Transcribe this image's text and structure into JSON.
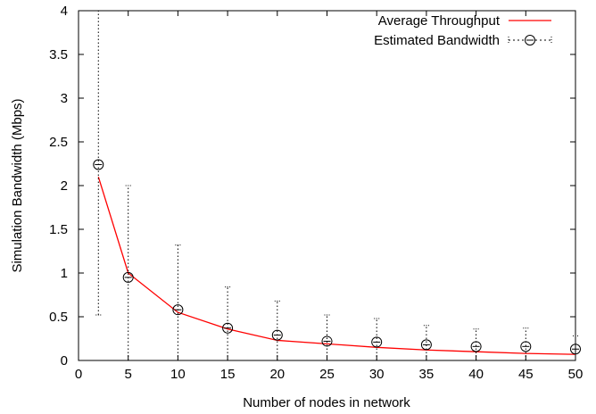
{
  "chart_data": {
    "type": "line",
    "xlabel": "Number of nodes in network",
    "ylabel": "Simulation Bandwidth (Mbps)",
    "xlim": [
      0,
      50
    ],
    "ylim": [
      0,
      4
    ],
    "xticks": [
      0,
      5,
      10,
      15,
      20,
      25,
      30,
      35,
      40,
      45,
      50
    ],
    "yticks": [
      0,
      0.5,
      1,
      1.5,
      2,
      2.5,
      3,
      3.5,
      4
    ],
    "xtick_labels": [
      "0",
      "5",
      "10",
      "15",
      "20",
      "25",
      "30",
      "35",
      "40",
      "45",
      "50"
    ],
    "ytick_labels": [
      "0",
      "0.5",
      "1",
      "1.5",
      "2",
      "2.5",
      "3",
      "3.5",
      "4"
    ],
    "legend_position": "top-right",
    "grid": false,
    "series": [
      {
        "name": "Average Throughput",
        "style": "line",
        "color": "#ff0000",
        "x": [
          2,
          5,
          10,
          15,
          20,
          25,
          30,
          35,
          40,
          45,
          50
        ],
        "y": [
          2.1,
          1.0,
          0.55,
          0.36,
          0.23,
          0.19,
          0.15,
          0.12,
          0.1,
          0.08,
          0.07
        ]
      },
      {
        "name": "Estimated Bandwidth",
        "style": "errorbar",
        "color": "#000000",
        "x": [
          2,
          5,
          10,
          15,
          20,
          25,
          30,
          35,
          40,
          45,
          50
        ],
        "y": [
          2.24,
          0.95,
          0.58,
          0.37,
          0.29,
          0.22,
          0.21,
          0.18,
          0.16,
          0.16,
          0.13
        ],
        "y_low": [
          0.52,
          0.0,
          0.0,
          0.0,
          0.0,
          0.0,
          0.0,
          0.0,
          0.0,
          0.0,
          0.0
        ],
        "y_high": [
          4.0,
          2.0,
          1.32,
          0.84,
          0.68,
          0.52,
          0.48,
          0.4,
          0.36,
          0.37,
          0.28
        ]
      }
    ]
  }
}
